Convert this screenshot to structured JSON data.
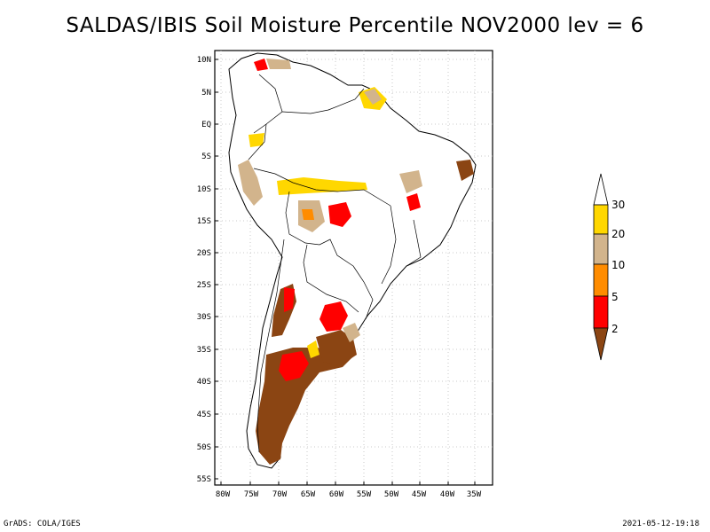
{
  "title": "SALDAS/IBIS Soil Moisture Percentile NOV2000 lev = 6",
  "lat_ticks": [
    "10N",
    "5N",
    "EQ",
    "5S",
    "10S",
    "15S",
    "20S",
    "25S",
    "30S",
    "35S",
    "40S",
    "45S",
    "50S",
    "55S"
  ],
  "lon_ticks": [
    "80W",
    "75W",
    "70W",
    "65W",
    "60W",
    "55W",
    "50W",
    "45W",
    "40W",
    "35W"
  ],
  "colorbar": {
    "labels": [
      "30",
      "20",
      "10",
      "5",
      "2"
    ],
    "colors": {
      "over_30": "#ffffff",
      "20_30": "#ffd700",
      "10_20": "#d2b48c",
      "5_10": "#ff8c00",
      "2_5": "#ff0000",
      "under_2": "#8b4513"
    }
  },
  "footer": {
    "left": "GrADS: COLA/IGES",
    "right": "2021-05-12-19:18"
  },
  "map_extent": {
    "lon_min": -80,
    "lon_max": -33,
    "lat_min": -56,
    "lat_max": 12
  }
}
